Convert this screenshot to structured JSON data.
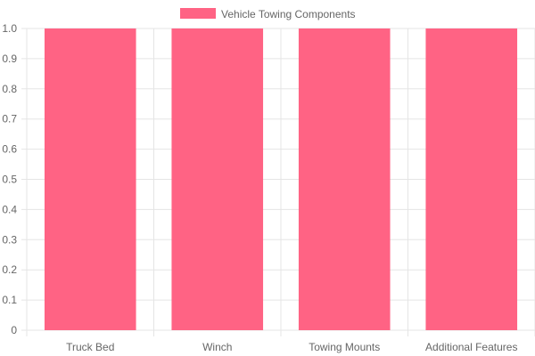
{
  "chart_data": {
    "type": "bar",
    "categories": [
      "Truck Bed",
      "Winch",
      "Towing Mounts",
      "Additional Features"
    ],
    "series": [
      {
        "name": "Vehicle Towing Components",
        "values": [
          1,
          1,
          1,
          1
        ],
        "color": "#ff6384"
      }
    ],
    "ylim": [
      0,
      1
    ],
    "yticks": [
      "0",
      "0.1",
      "0.2",
      "0.3",
      "0.4",
      "0.5",
      "0.6",
      "0.7",
      "0.8",
      "0.9",
      "1.0"
    ],
    "grid": true,
    "legend_position": "top",
    "colors": {
      "grid": "#e5e5e5",
      "text": "#666666"
    }
  }
}
